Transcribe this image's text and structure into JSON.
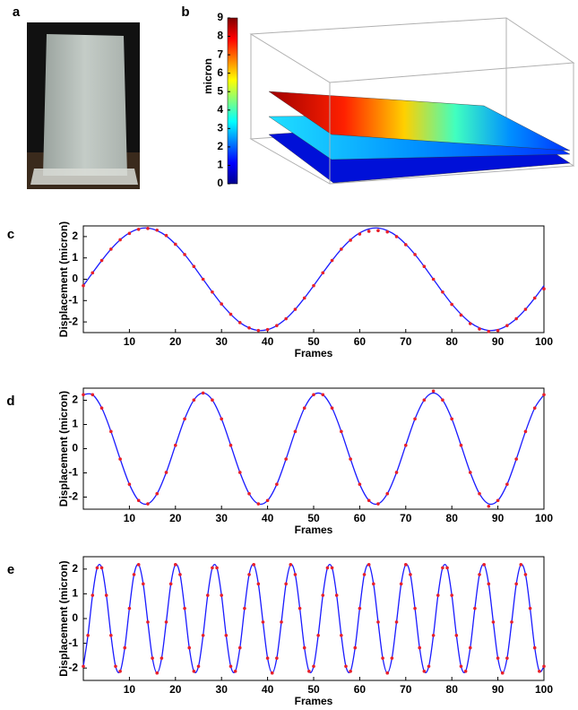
{
  "chart_data": [
    {
      "type": "image",
      "label": "a"
    },
    {
      "type": "surface",
      "label": "b",
      "ylabel": "micron",
      "ylim": [
        0,
        9
      ],
      "yticks": [
        0,
        1,
        2,
        3,
        4,
        5,
        6,
        7,
        8,
        9
      ]
    },
    {
      "type": "line",
      "label": "c",
      "xlabel": "Frames",
      "ylabel": "Displacement (micron)",
      "xlim": [
        0,
        100
      ],
      "ylim": [
        -2.5,
        2.5
      ],
      "xticks": [
        10,
        20,
        30,
        40,
        50,
        60,
        70,
        80,
        90,
        100
      ],
      "yticks": [
        -2,
        -1,
        0,
        1,
        2
      ],
      "x": [
        0,
        2,
        4,
        6,
        8,
        10,
        12,
        14,
        16,
        18,
        20,
        22,
        24,
        26,
        28,
        30,
        32,
        34,
        36,
        38,
        40,
        42,
        44,
        46,
        48,
        50,
        52,
        54,
        56,
        58,
        60,
        62,
        64,
        66,
        68,
        70,
        72,
        74,
        76,
        78,
        80,
        82,
        84,
        86,
        88,
        90,
        92,
        94,
        96,
        98,
        100
      ],
      "series": [
        {
          "style": "line",
          "color": "#1a1aff",
          "values": [
            -0.3,
            0.3,
            0.88,
            1.41,
            1.85,
            2.17,
            2.36,
            2.4,
            2.28,
            2.03,
            1.64,
            1.16,
            0.6,
            0,
            -0.6,
            -1.16,
            -1.64,
            -2.03,
            -2.28,
            -2.4,
            -2.36,
            -2.17,
            -1.85,
            -1.41,
            -0.88,
            -0.3,
            0.3,
            0.88,
            1.41,
            1.85,
            2.17,
            2.36,
            2.4,
            2.28,
            2.03,
            1.64,
            1.16,
            0.6,
            0,
            -0.6,
            -1.16,
            -1.64,
            -2.03,
            -2.28,
            -2.4,
            -2.36,
            -2.17,
            -1.85,
            -1.41,
            -0.88,
            -0.3
          ]
        },
        {
          "style": "markers",
          "color": "#e8202a",
          "values": [
            -0.3,
            0.3,
            0.88,
            1.41,
            1.85,
            2.15,
            2.34,
            2.38,
            2.3,
            2.05,
            1.64,
            1.16,
            0.6,
            0,
            -0.6,
            -1.16,
            -1.64,
            -2.03,
            -2.28,
            -2.4,
            -2.36,
            -2.17,
            -1.85,
            -1.41,
            -0.88,
            -0.3,
            0.3,
            0.88,
            1.41,
            1.83,
            2.12,
            2.25,
            2.28,
            2.22,
            2.0,
            1.62,
            1.16,
            0.6,
            0,
            -0.6,
            -1.18,
            -1.68,
            -2.08,
            -2.33,
            -2.45,
            -2.4,
            -2.17,
            -1.85,
            -1.41,
            -0.88,
            -0.45
          ]
        }
      ]
    },
    {
      "type": "line",
      "label": "d",
      "xlabel": "Frames",
      "ylabel": "Displacement (micron)",
      "xlim": [
        0,
        100
      ],
      "ylim": [
        -2.5,
        2.5
      ],
      "xticks": [
        10,
        20,
        30,
        40,
        50,
        60,
        70,
        80,
        90,
        100
      ],
      "yticks": [
        -2,
        -1,
        0,
        1,
        2
      ],
      "x": [
        0,
        2,
        4,
        6,
        8,
        10,
        12,
        14,
        16,
        18,
        20,
        22,
        24,
        26,
        28,
        30,
        32,
        34,
        36,
        38,
        40,
        42,
        44,
        46,
        48,
        50,
        52,
        54,
        56,
        58,
        60,
        62,
        64,
        66,
        68,
        70,
        72,
        74,
        76,
        78,
        80,
        82,
        84,
        86,
        88,
        90,
        92,
        94,
        96,
        98,
        100
      ],
      "series": [
        {
          "style": "line",
          "color": "#1a1aff",
          "values": [
            2.23,
            2.23,
            1.68,
            0.71,
            -0.43,
            -1.47,
            -2.14,
            -2.28,
            -1.86,
            -0.98,
            0.14,
            1.23,
            2.01,
            2.3,
            2.01,
            1.23,
            0.14,
            -0.98,
            -1.86,
            -2.28,
            -2.14,
            -1.47,
            -0.43,
            0.71,
            1.68,
            2.23,
            2.23,
            1.68,
            0.71,
            -0.43,
            -1.47,
            -2.14,
            -2.28,
            -1.86,
            -0.98,
            0.14,
            1.23,
            2.01,
            2.3,
            2.01,
            1.23,
            0.14,
            -0.98,
            -1.86,
            -2.28,
            -2.14,
            -1.47,
            -0.43,
            0.71,
            1.68,
            2.23
          ]
        },
        {
          "style": "markers",
          "color": "#e8202a",
          "values": [
            2.23,
            2.23,
            1.68,
            0.71,
            -0.43,
            -1.47,
            -2.14,
            -2.28,
            -1.86,
            -0.98,
            0.14,
            1.23,
            2.01,
            2.3,
            2.01,
            1.23,
            0.14,
            -0.98,
            -1.86,
            -2.28,
            -2.14,
            -1.47,
            -0.43,
            0.71,
            1.68,
            2.23,
            2.23,
            1.68,
            0.71,
            -0.43,
            -1.47,
            -2.14,
            -2.28,
            -1.86,
            -0.98,
            0.14,
            1.23,
            2.01,
            2.38,
            2.01,
            1.23,
            0.14,
            -0.98,
            -1.86,
            -2.38,
            -2.14,
            -1.47,
            -0.43,
            0.71,
            1.68,
            2.23
          ]
        }
      ]
    },
    {
      "type": "line",
      "label": "e",
      "xlabel": "Frames",
      "ylabel": "Displacement (micron)",
      "xlim": [
        0,
        100
      ],
      "ylim": [
        -2.5,
        2.5
      ],
      "xticks": [
        10,
        20,
        30,
        40,
        50,
        60,
        70,
        80,
        90,
        100
      ],
      "yticks": [
        -2,
        -1,
        0,
        1,
        2
      ],
      "x": [
        0,
        1,
        2,
        3,
        4,
        5,
        6,
        7,
        8,
        9,
        10,
        11,
        12,
        13,
        14,
        15,
        16,
        17,
        18,
        19,
        20,
        21,
        22,
        23,
        24,
        25,
        26,
        27,
        28,
        29,
        30,
        31,
        32,
        33,
        34,
        35,
        36,
        37,
        38,
        39,
        40,
        41,
        42,
        43,
        44,
        45,
        46,
        47,
        48,
        49,
        50,
        51,
        52,
        53,
        54,
        55,
        56,
        57,
        58,
        59,
        60,
        61,
        62,
        63,
        64,
        65,
        66,
        67,
        68,
        69,
        70,
        71,
        72,
        73,
        74,
        75,
        76,
        77,
        78,
        79,
        80,
        81,
        82,
        83,
        84,
        85,
        86,
        87,
        88,
        89,
        90,
        91,
        92,
        93,
        94,
        95,
        96,
        97,
        98,
        99,
        100
      ],
      "series": [
        {
          "style": "line",
          "color": "#1a1aff",
          "values": [
            -1.93,
            -0.68,
            0.94,
            2.05,
            2.05,
            0.94,
            -0.68,
            -1.93,
            -2.13,
            -1.18,
            0.41,
            1.78,
            2.18,
            1.4,
            -0.14,
            -1.6,
            -2.2,
            -1.6,
            -0.14,
            1.4,
            2.18,
            1.78,
            0.41,
            -1.18,
            -2.13,
            -1.93,
            -0.68,
            0.94,
            2.05,
            2.05,
            0.94,
            -0.68,
            -1.93,
            -2.13,
            -1.18,
            0.41,
            1.78,
            2.18,
            1.4,
            -0.14,
            -1.6,
            -2.2,
            -1.6,
            -0.14,
            1.4,
            2.18,
            1.78,
            0.41,
            -1.18,
            -2.13,
            -1.93,
            -0.68,
            0.94,
            2.05,
            2.05,
            0.94,
            -0.68,
            -1.93,
            -2.13,
            -1.18,
            0.41,
            1.78,
            2.18,
            1.4,
            -0.14,
            -1.6,
            -2.2,
            -1.6,
            -0.14,
            1.4,
            2.18,
            1.78,
            0.41,
            -1.18,
            -2.13,
            -1.93,
            -0.68,
            0.94,
            2.05,
            2.05,
            0.94,
            -0.68,
            -1.93,
            -2.13,
            -1.18,
            0.41,
            1.78,
            2.18,
            1.4,
            -0.14,
            -1.6,
            -2.2,
            -1.6,
            -0.14,
            1.4,
            2.18,
            1.78,
            0.41,
            -1.18,
            -2.13,
            -1.93
          ]
        },
        {
          "style": "markers",
          "color": "#e8202a",
          "values": [
            -1.93,
            -0.68,
            0.94,
            2.05,
            2.05,
            0.94,
            -0.68,
            -1.93,
            -2.13,
            -1.18,
            0.41,
            1.78,
            2.18,
            1.4,
            -0.14,
            -1.6,
            -2.2,
            -1.6,
            -0.14,
            1.4,
            2.18,
            1.78,
            0.41,
            -1.18,
            -2.13,
            -1.93,
            -0.68,
            0.94,
            2.05,
            2.05,
            0.94,
            -0.68,
            -1.93,
            -2.13,
            -1.18,
            0.41,
            1.78,
            2.18,
            1.4,
            -0.14,
            -1.6,
            -2.2,
            -1.6,
            -0.14,
            1.4,
            2.18,
            1.78,
            0.41,
            -1.18,
            -2.13,
            -1.93,
            -0.68,
            0.94,
            2.05,
            2.05,
            0.94,
            -0.68,
            -1.93,
            -2.13,
            -1.18,
            0.41,
            1.78,
            2.18,
            1.4,
            -0.14,
            -1.6,
            -2.2,
            -1.6,
            -0.14,
            1.4,
            2.18,
            1.78,
            0.41,
            -1.18,
            -2.13,
            -1.93,
            -0.68,
            0.94,
            2.05,
            2.05,
            0.94,
            -0.68,
            -1.93,
            -2.13,
            -1.18,
            0.41,
            1.78,
            2.18,
            1.4,
            -0.14,
            -1.6,
            -2.2,
            -1.6,
            -0.14,
            1.4,
            2.18,
            1.78,
            0.41,
            -1.18,
            -2.13,
            -1.93
          ]
        }
      ]
    }
  ]
}
